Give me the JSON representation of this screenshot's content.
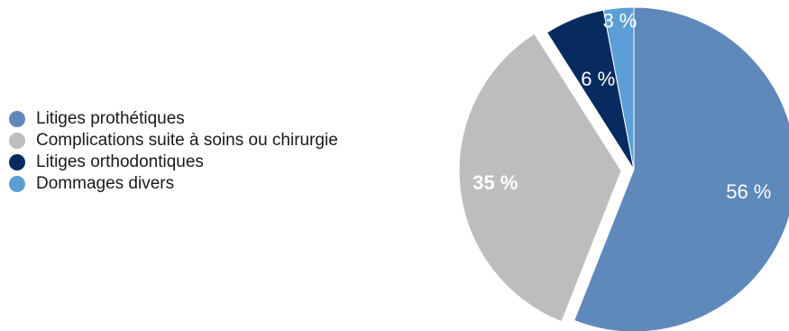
{
  "chart_data": {
    "type": "pie",
    "title": "",
    "slices": [
      {
        "label": "Litiges prothétiques",
        "value": 56,
        "value_label": "56 %",
        "color": "#5f88bb",
        "exploded": false
      },
      {
        "label": "Complications suite à soins ou chirurgie",
        "value": 35,
        "value_label": "35 %",
        "color": "#bdbdbd",
        "exploded": true
      },
      {
        "label": "Litiges orthodontiques",
        "value": 6,
        "value_label": "6 %",
        "color": "#072b5f",
        "exploded": false
      },
      {
        "label": "Dommages divers",
        "value": 3,
        "value_label": "3 %",
        "color": "#5b9fd6",
        "exploded": false
      }
    ],
    "start_angle": "12 o'clock",
    "direction": "clockwise",
    "legend_position": "left"
  }
}
